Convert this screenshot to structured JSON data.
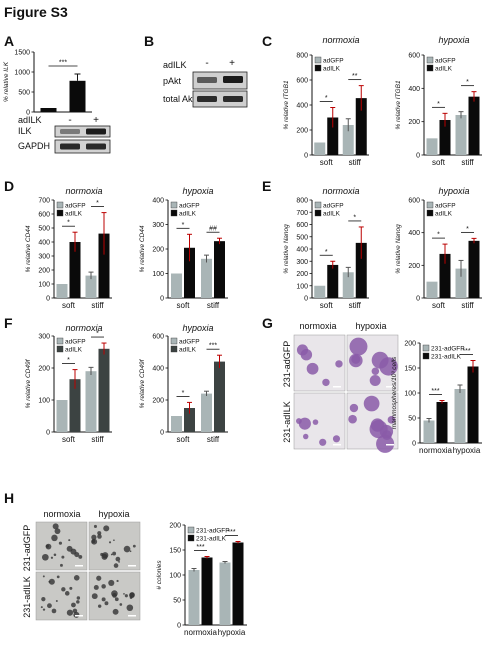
{
  "figure_title": "Figure S3",
  "panel_letters": [
    "A",
    "B",
    "C",
    "D",
    "E",
    "F",
    "G",
    "H"
  ],
  "colors": {
    "light": "#a9b5b6",
    "dark": "#0a0a0a",
    "dark_f": "#3c4342",
    "axis": "#111111",
    "micro_purple": "#8a5aa8",
    "micro_gray": "#c7c7c2"
  },
  "panelA": {
    "ylabel": "% relative ILK",
    "yticks": [
      "0",
      "500",
      "1000",
      "1500"
    ],
    "ylim": [
      0,
      1500
    ],
    "sig": "***",
    "blot_axis_label": "adILK",
    "lanes": [
      "-",
      "+"
    ],
    "blots": [
      "ILK",
      "GAPDH"
    ]
  },
  "panelB": {
    "label": "adILK",
    "lanes": [
      "-",
      "+"
    ],
    "blots": [
      "pAkt",
      "total Akt"
    ]
  },
  "microscopy_G": {
    "cols": [
      "normoxia",
      "hypoxia"
    ],
    "rows": [
      "231-adGFP",
      "231-adILK"
    ]
  },
  "microscopy_H": {
    "cols": [
      "normoxia",
      "hypoxia"
    ],
    "rows": [
      "231-adGFP",
      "231-adILK"
    ]
  },
  "chart_data": [
    {
      "id": "A",
      "type": "bar",
      "categories": [
        "-",
        "+"
      ],
      "series": [
        {
          "values": [
            100,
            780
          ],
          "errors": [
            0,
            170
          ]
        }
      ],
      "ylabel": "% relative ILK",
      "ylim": [
        0,
        1500
      ]
    },
    {
      "id": "C-normoxia",
      "type": "bar",
      "title": "normoxia",
      "ylabel": "% relative ITGB1",
      "categories": [
        "soft",
        "stiff"
      ],
      "ylim": [
        0,
        800
      ],
      "yticks": [
        "0",
        "200",
        "400",
        "600",
        "800"
      ],
      "series": [
        {
          "name": "adGFP",
          "values": [
            100,
            240
          ],
          "errors": [
            0,
            50
          ]
        },
        {
          "name": "adILK",
          "values": [
            300,
            455
          ],
          "errors": [
            80,
            100
          ]
        }
      ],
      "sig": [
        "*",
        "**"
      ]
    },
    {
      "id": "C-hypoxia",
      "type": "bar",
      "title": "hypoxia",
      "ylabel": "% relative ITGB1",
      "categories": [
        "soft",
        "stiff"
      ],
      "ylim": [
        0,
        600
      ],
      "yticks": [
        "0",
        "200",
        "400",
        "600"
      ],
      "series": [
        {
          "name": "adGFP",
          "values": [
            100,
            240
          ],
          "errors": [
            0,
            20
          ]
        },
        {
          "name": "adILK",
          "values": [
            210,
            350
          ],
          "errors": [
            40,
            30
          ]
        }
      ],
      "sig": [
        "*",
        "*"
      ]
    },
    {
      "id": "D-normoxia",
      "type": "bar",
      "title": "normoxia",
      "ylabel": "% relative CD44",
      "categories": [
        "soft",
        "stiff"
      ],
      "ylim": [
        0,
        700
      ],
      "yticks": [
        "0",
        "100",
        "200",
        "300",
        "400",
        "500",
        "600",
        "700"
      ],
      "series": [
        {
          "name": "adGFP",
          "values": [
            100,
            160
          ],
          "errors": [
            0,
            25
          ]
        },
        {
          "name": "adILK",
          "values": [
            400,
            460
          ],
          "errors": [
            70,
            150
          ]
        }
      ],
      "sig": [
        "*",
        "*"
      ]
    },
    {
      "id": "D-hypoxia",
      "type": "bar",
      "title": "hypoxia",
      "ylabel": "% relative CD44",
      "categories": [
        "soft",
        "stiff"
      ],
      "ylim": [
        0,
        400
      ],
      "yticks": [
        "0",
        "100",
        "200",
        "300",
        "400"
      ],
      "series": [
        {
          "name": "adGFP",
          "values": [
            100,
            160
          ],
          "errors": [
            0,
            15
          ]
        },
        {
          "name": "adILK",
          "values": [
            205,
            232
          ],
          "errors": [
            55,
            12
          ]
        }
      ],
      "sig": [
        "*",
        "##"
      ]
    },
    {
      "id": "E-normoxia",
      "type": "bar",
      "title": "normoxia",
      "ylabel": "% relative Nanog",
      "categories": [
        "soft",
        "stiff"
      ],
      "ylim": [
        0,
        800
      ],
      "yticks": [
        "0",
        "100",
        "200",
        "300",
        "400",
        "500",
        "600",
        "700",
        "800"
      ],
      "series": [
        {
          "name": "adGFP",
          "values": [
            100,
            210
          ],
          "errors": [
            0,
            40
          ]
        },
        {
          "name": "adILK",
          "values": [
            270,
            450
          ],
          "errors": [
            30,
            130
          ]
        }
      ],
      "sig": [
        "*",
        "*"
      ]
    },
    {
      "id": "E-hypoxia",
      "type": "bar",
      "title": "hypoxia",
      "ylabel": "% relative Nanog",
      "categories": [
        "soft",
        "stiff"
      ],
      "ylim": [
        0,
        600
      ],
      "yticks": [
        "0",
        "200",
        "400",
        "600"
      ],
      "series": [
        {
          "name": "adGFP",
          "values": [
            100,
            180
          ],
          "errors": [
            0,
            50
          ]
        },
        {
          "name": "adILK",
          "values": [
            270,
            350
          ],
          "errors": [
            60,
            15
          ]
        }
      ],
      "sig": [
        "*",
        "*"
      ]
    },
    {
      "id": "F-normoxia",
      "type": "bar",
      "title": "normoxia",
      "ylabel": "% relative CD49f",
      "categories": [
        "soft",
        "stiff"
      ],
      "ylim": [
        0,
        300
      ],
      "yticks": [
        "0",
        "100",
        "200",
        "300"
      ],
      "series": [
        {
          "name": "adGFP",
          "values": [
            100,
            190
          ],
          "errors": [
            0,
            12
          ]
        },
        {
          "name": "adILK",
          "values": [
            165,
            260
          ],
          "errors": [
            30,
            18
          ]
        }
      ],
      "sig": [
        "*",
        "*"
      ]
    },
    {
      "id": "F-hypoxia",
      "type": "bar",
      "title": "hypoxia",
      "ylabel": "% relative CD49f",
      "categories": [
        "soft",
        "stiff"
      ],
      "ylim": [
        0,
        600
      ],
      "yticks": [
        "0",
        "200",
        "400",
        "600"
      ],
      "series": [
        {
          "name": "adGFP",
          "values": [
            100,
            240
          ],
          "errors": [
            0,
            15
          ]
        },
        {
          "name": "adILK",
          "values": [
            150,
            440
          ],
          "errors": [
            35,
            40
          ]
        }
      ],
      "sig": [
        "*",
        "***"
      ]
    },
    {
      "id": "G",
      "type": "bar",
      "ylabel": "mammospheres/10³ cells",
      "categories": [
        "normoxia",
        "hypoxia"
      ],
      "ylim": [
        0,
        200
      ],
      "yticks": [
        "0",
        "50",
        "100",
        "150",
        "200"
      ],
      "series": [
        {
          "name": "231-adGFP",
          "values": [
            45,
            108
          ],
          "errors": [
            4,
            8
          ]
        },
        {
          "name": "231-adILK",
          "values": [
            82,
            153
          ],
          "errors": [
            3,
            12
          ]
        }
      ],
      "sig": [
        "***",
        "***"
      ]
    },
    {
      "id": "H",
      "type": "bar",
      "ylabel": "# colonies",
      "categories": [
        "normoxia",
        "hypoxia"
      ],
      "ylim": [
        0,
        200
      ],
      "yticks": [
        "0",
        "50",
        "100",
        "150",
        "200"
      ],
      "series": [
        {
          "name": "231-adGFP",
          "values": [
            110,
            125
          ],
          "errors": [
            3,
            2
          ]
        },
        {
          "name": "231-adILK",
          "values": [
            135,
            165
          ],
          "errors": [
            2,
            2
          ]
        }
      ],
      "sig": [
        "***",
        "***"
      ]
    }
  ]
}
